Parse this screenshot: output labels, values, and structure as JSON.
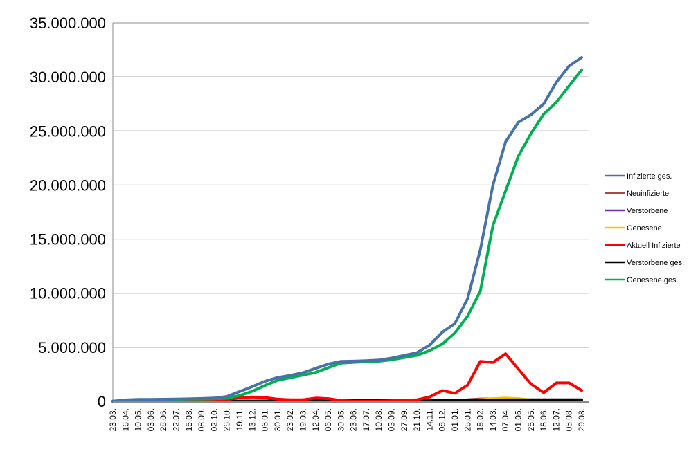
{
  "chart_data": {
    "type": "line",
    "title": "",
    "xlabel": "",
    "ylabel": "",
    "ylim": [
      0,
      35000000
    ],
    "yticks": [
      0,
      5000000,
      10000000,
      15000000,
      20000000,
      25000000,
      30000000,
      35000000
    ],
    "ytick_labels": [
      "0",
      "5.000.000",
      "10.000.000",
      "15.000.000",
      "20.000.000",
      "25.000.000",
      "30.000.000",
      "35.000.000"
    ],
    "grid": "horizontal",
    "legend_position": "right",
    "categories": [
      "23.03.",
      "16.04.",
      "10.05.",
      "03.06.",
      "28.06.",
      "22.07.",
      "15.08.",
      "08.09.",
      "02.10.",
      "26.10.",
      "19.11.",
      "13.12.",
      "06.01.",
      "30.01.",
      "23.02.",
      "19.03.",
      "12.04.",
      "06.05.",
      "30.05.",
      "23.06.",
      "17.07.",
      "10.08.",
      "03.09.",
      "27.09.",
      "21.10.",
      "14.11.",
      "08.12.",
      "01.01.",
      "25.01.",
      "18.02.",
      "14.03.",
      "07.04.",
      "01.05.",
      "25.05.",
      "18.06.",
      "12.07.",
      "05.08.",
      "29.08."
    ],
    "series": [
      {
        "name": "Infizierte ges.",
        "color": "#4572A7",
        "values": [
          20000,
          130000,
          170000,
          180000,
          195000,
          205000,
          230000,
          260000,
          300000,
          450000,
          900000,
          1350000,
          1850000,
          2200000,
          2400000,
          2650000,
          3050000,
          3450000,
          3700000,
          3720000,
          3760000,
          3820000,
          4000000,
          4250000,
          4500000,
          5200000,
          6400000,
          7200000,
          9500000,
          14000000,
          20000000,
          24000000,
          25800000,
          26500000,
          27500000,
          29500000,
          31000000,
          31800000
        ]
      },
      {
        "name": "Neuinfizierte",
        "color": "#AA4643",
        "values": [
          1000,
          3000,
          1000,
          500,
          500,
          700,
          1500,
          2000,
          3000,
          12000,
          22000,
          25000,
          20000,
          12000,
          8000,
          12000,
          20000,
          12000,
          3000,
          700,
          1000,
          3000,
          8000,
          10000,
          15000,
          50000,
          55000,
          40000,
          150000,
          220000,
          230000,
          180000,
          100000,
          60000,
          50000,
          100000,
          60000,
          40000
        ]
      },
      {
        "name": "Verstorbene",
        "color": "#7030A0",
        "values": [
          0,
          200,
          100,
          30,
          10,
          10,
          10,
          20,
          30,
          100,
          300,
          600,
          900,
          700,
          400,
          200,
          250,
          200,
          100,
          30,
          20,
          20,
          40,
          60,
          80,
          250,
          400,
          300,
          200,
          150,
          200,
          250,
          200,
          100,
          50,
          100,
          120,
          100
        ]
      },
      {
        "name": "Genesene",
        "color": "#FFC000",
        "values": [
          500,
          3000,
          2000,
          700,
          500,
          600,
          1000,
          1500,
          2000,
          5000,
          15000,
          22000,
          25000,
          18000,
          10000,
          9000,
          15000,
          18000,
          8000,
          2000,
          800,
          1500,
          5000,
          8000,
          10000,
          30000,
          50000,
          55000,
          60000,
          150000,
          250000,
          300000,
          250000,
          120000,
          60000,
          70000,
          90000,
          70000
        ]
      },
      {
        "name": "Aktuell Infizierte",
        "color": "#FF0000",
        "values": [
          10000,
          60000,
          30000,
          10000,
          8000,
          8000,
          15000,
          30000,
          50000,
          150000,
          350000,
          400000,
          350000,
          200000,
          150000,
          150000,
          300000,
          250000,
          80000,
          20000,
          10000,
          20000,
          60000,
          100000,
          150000,
          400000,
          1000000,
          750000,
          1500000,
          3700000,
          3600000,
          4400000,
          3000000,
          1600000,
          800000,
          1700000,
          1700000,
          1000000
        ]
      },
      {
        "name": "Verstorbene ges.",
        "color": "#000000",
        "values": [
          0,
          6000,
          8000,
          8500,
          9000,
          9100,
          9300,
          9400,
          9600,
          10500,
          13000,
          21000,
          35000,
          56000,
          70000,
          75000,
          80000,
          85000,
          88000,
          90000,
          91000,
          92000,
          93000,
          95000,
          98000,
          103000,
          108000,
          113000,
          117000,
          122000,
          126000,
          133000,
          137000,
          140000,
          141000,
          143000,
          145000,
          147000
        ]
      },
      {
        "name": "Genesene ges.",
        "color": "#00B050",
        "values": [
          10000,
          64000,
          132000,
          161500,
          178000,
          188000,
          205700,
          220600,
          240400,
          289500,
          537000,
          929000,
          1465000,
          1944000,
          2180000,
          2425000,
          2670000,
          3115000,
          3532000,
          3610000,
          3659000,
          3708000,
          3847000,
          4055000,
          4252000,
          4697000,
          5292000,
          6337000,
          7883000,
          10178000,
          16274000,
          19467000,
          22663000,
          24760000,
          26559000,
          27657000,
          29155000,
          30653000
        ]
      }
    ]
  }
}
